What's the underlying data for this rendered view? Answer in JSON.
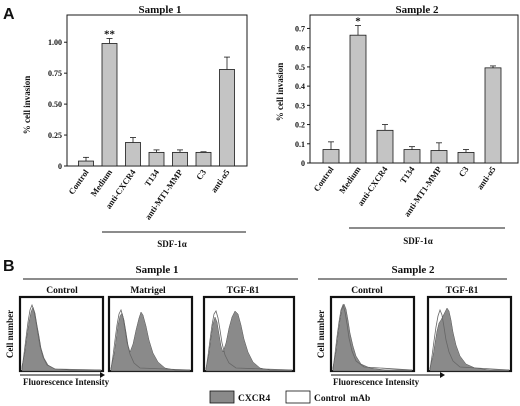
{
  "panel_a_letter": "A",
  "panel_b_letter": "B",
  "colors": {
    "bar": "#c4c4c4",
    "cxcr4": "#8a8a8a",
    "control": "#ffffff",
    "stroke": "#1a1a1a"
  },
  "chart_data": [
    {
      "type": "bar",
      "title": "Sample 1",
      "ylabel": "% cell invasion",
      "xlabel": "",
      "categories": [
        "Control",
        "Medium",
        "anti-CXCR4",
        "T134",
        "anti-MT1-MMP",
        "C3",
        "anti-α5"
      ],
      "values": [
        0.04,
        0.99,
        0.19,
        0.11,
        0.11,
        0.11,
        0.78
      ],
      "errors": [
        0.03,
        0.04,
        0.04,
        0.02,
        0.02,
        0.005,
        0.1
      ],
      "significance": [
        "",
        "**",
        "",
        "",
        "",
        "",
        ""
      ],
      "yticks": [
        "0",
        "0.25",
        "0.50",
        "0.75",
        "1.00"
      ],
      "ylim": [
        0,
        1.22
      ],
      "group_label": "SDF-1α",
      "grid": false
    },
    {
      "type": "bar",
      "title": "Sample 2",
      "ylabel": "% cell invasion",
      "xlabel": "",
      "categories": [
        "Control",
        "Medium",
        "anti-CXCR4",
        "T134",
        "anti-MT1-MMP",
        "C3",
        "anti-α5"
      ],
      "values": [
        0.07,
        0.665,
        0.17,
        0.07,
        0.065,
        0.055,
        0.495
      ],
      "errors": [
        0.04,
        0.05,
        0.03,
        0.015,
        0.04,
        0.015,
        0.01
      ],
      "significance": [
        "",
        "*",
        "",
        "",
        "",
        "",
        ""
      ],
      "yticks": [
        "0",
        "0.1",
        "0.2",
        "0.3",
        "0.4",
        "0.5",
        "0.6",
        "0.7"
      ],
      "ylim": [
        0,
        0.77
      ],
      "group_label": "SDF-1α",
      "grid": false
    }
  ],
  "panel_b": {
    "sample1": {
      "title": "Sample 1",
      "histograms": [
        "Control",
        "Matrigel",
        "TGF-ß1"
      ]
    },
    "sample2": {
      "title": "Sample 2",
      "histograms": [
        "Control",
        "TGF-ß1"
      ]
    },
    "y_axis_label": "Cell number",
    "x_axis_label": "Fluorescence Intensity",
    "legend": [
      {
        "label": "CXCR4",
        "swatch": "filled-gray"
      },
      {
        "label": "Control  mAb",
        "swatch": "open-white"
      }
    ]
  }
}
